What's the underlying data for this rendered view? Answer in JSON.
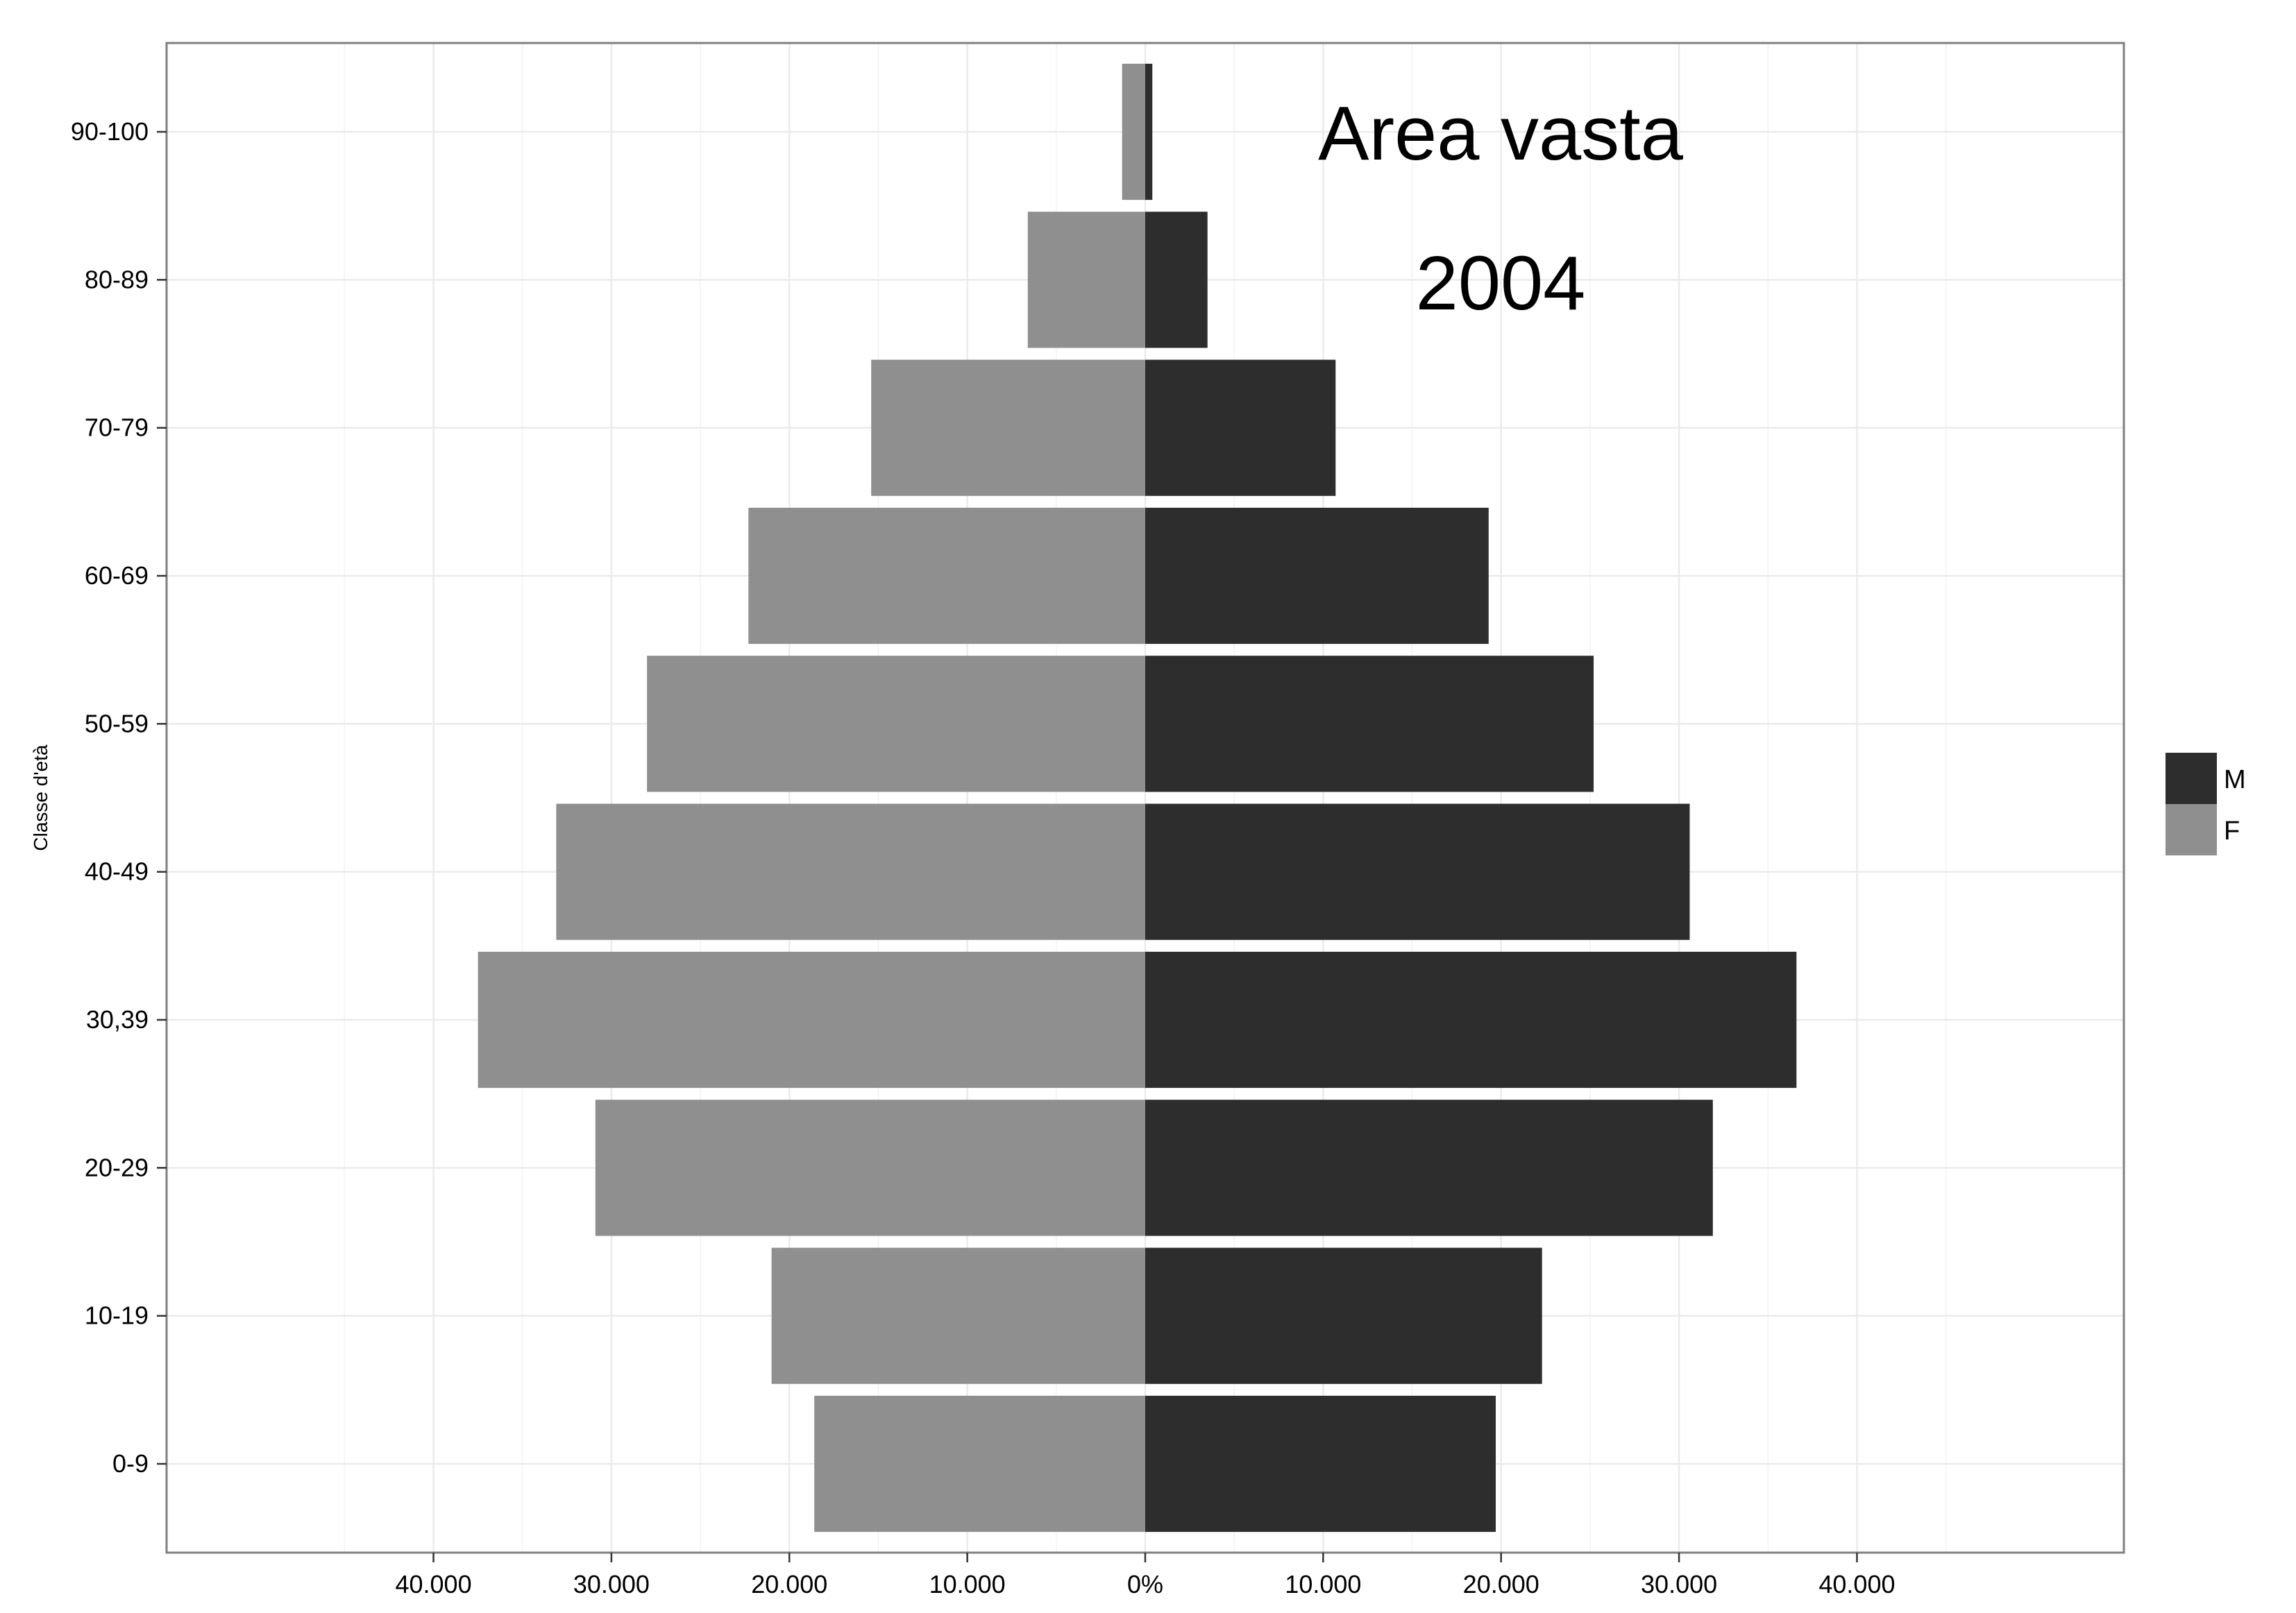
{
  "chart_data": {
    "type": "bar",
    "orientation": "horizontal",
    "subtype": "population-pyramid",
    "title": "",
    "xlabel": "",
    "ylabel": "Classe d'età",
    "annotations": [
      "Area vasta",
      "2004"
    ],
    "categories": [
      "0-9",
      "10-19",
      "20-29",
      "30,39",
      "40-49",
      "50-59",
      "60-69",
      "70-79",
      "80-89",
      "90-100"
    ],
    "series": [
      {
        "name": "M",
        "color": "#2d2d2d",
        "values": [
          19700,
          22300,
          31900,
          36600,
          30600,
          25200,
          19300,
          10700,
          3500,
          400
        ]
      },
      {
        "name": "F",
        "color": "#8f8f8f",
        "values": [
          18600,
          21000,
          30900,
          37500,
          33100,
          28000,
          22300,
          15400,
          6600,
          1300
        ]
      }
    ],
    "xlim": [
      -55000,
      55000
    ],
    "xticks": [
      -40000,
      -30000,
      -20000,
      -10000,
      0,
      10000,
      20000,
      30000,
      40000
    ],
    "xtick_labels": [
      "40.000",
      "30.000",
      "20.000",
      "10.000",
      "0%",
      "10.000",
      "20.000",
      "30.000",
      "40.000"
    ],
    "grid": true,
    "legend": {
      "position": "right",
      "entries": [
        "M",
        "F"
      ]
    }
  }
}
